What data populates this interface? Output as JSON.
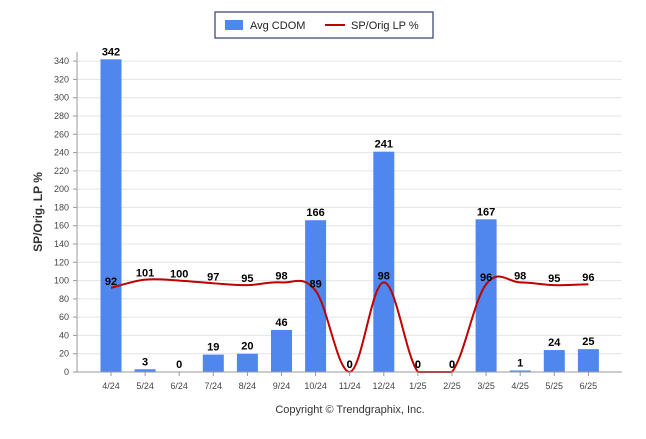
{
  "chart_data": {
    "type": "bar",
    "categories": [
      "4/24",
      "5/24",
      "6/24",
      "7/24",
      "8/24",
      "9/24",
      "10/24",
      "11/24",
      "12/24",
      "1/25",
      "2/25",
      "3/25",
      "4/25",
      "5/25",
      "6/25"
    ],
    "series": [
      {
        "name": "Avg CDOM",
        "type": "bar",
        "color": "#4f87ee",
        "values": [
          342,
          3,
          0,
          19,
          20,
          46,
          166,
          0,
          241,
          0,
          0,
          167,
          1,
          24,
          25
        ]
      },
      {
        "name": "SP/Orig LP %",
        "type": "line",
        "color": "#c00000",
        "values": [
          92,
          101,
          100,
          97,
          95,
          98,
          89,
          0,
          98,
          0,
          0,
          96,
          98,
          95,
          96
        ],
        "labels": [
          "92",
          "101",
          "100",
          "97",
          "95",
          "98",
          "89",
          "0",
          "98",
          "0",
          "0",
          "96",
          "98",
          "95",
          "96"
        ]
      }
    ],
    "ylabel": "SP/Orig. LP %",
    "ylim": [
      0,
      350
    ],
    "yticks": [
      0,
      20,
      40,
      60,
      80,
      100,
      120,
      140,
      160,
      180,
      200,
      220,
      240,
      260,
      280,
      300,
      320,
      340
    ],
    "grid": true,
    "legend_position": "top-center",
    "copyright": "Copyright © Trendgraphix, Inc."
  }
}
